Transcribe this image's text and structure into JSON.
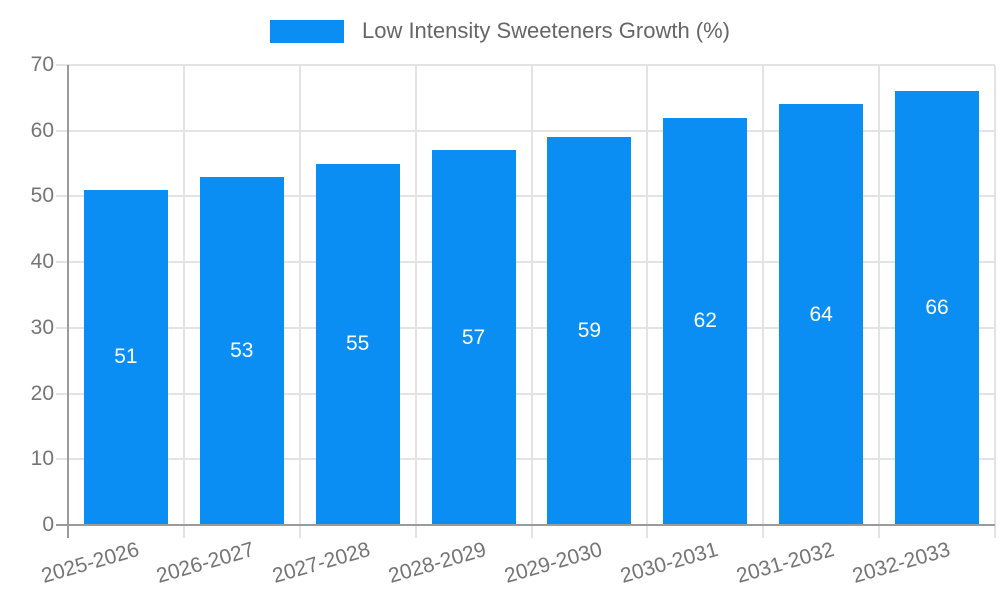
{
  "chart_data": {
    "type": "bar",
    "legend": [
      {
        "label": "Low Intensity Sweeteners Growth (%)"
      }
    ],
    "categories": [
      "2025-2026",
      "2026-2027",
      "2027-2028",
      "2028-2029",
      "2029-2030",
      "2030-2031",
      "2031-2032",
      "2032-2033"
    ],
    "series": [
      {
        "name": "Low Intensity Sweeteners Growth (%)",
        "values": [
          51,
          53,
          55,
          57,
          59,
          62,
          64,
          66
        ]
      }
    ],
    "value_labels": [
      "51",
      "53",
      "55",
      "57",
      "59",
      "62",
      "64",
      "66"
    ],
    "xlabel": "",
    "ylabel": "",
    "title": "",
    "ylim": [
      0,
      70
    ],
    "ytick_step": 10,
    "ytick_labels": [
      "0",
      "10",
      "20",
      "30",
      "40",
      "50",
      "60",
      "70"
    ],
    "grid": "on",
    "legend_position": "top-center",
    "xtick_rotation_deg": -16
  },
  "colors": {
    "bar": "#0a8ef4",
    "legend_text": "#666666",
    "tick_text": "#757575",
    "gridline": "#e3e3e3",
    "axis_line": "#9b9b9b",
    "bar_value_text": "#ffffff",
    "background": "#ffffff"
  }
}
